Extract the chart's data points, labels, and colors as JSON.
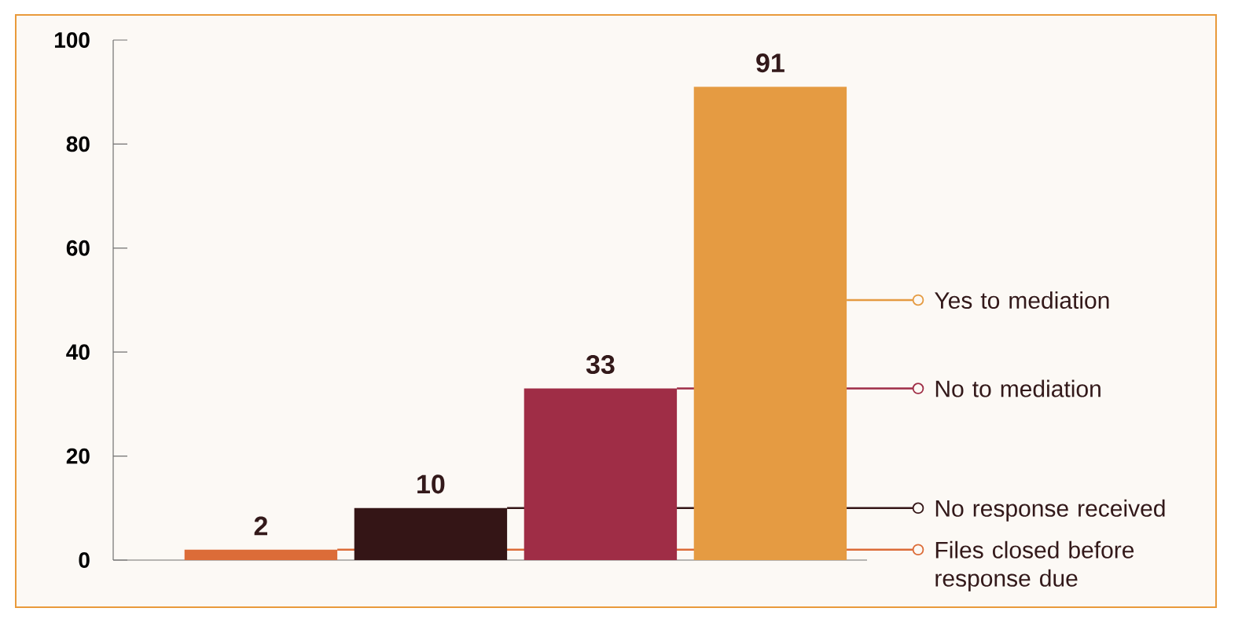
{
  "chart_data": {
    "type": "bar",
    "categories": [
      null,
      null,
      null,
      null
    ],
    "series": [
      {
        "name": "Files closed before response due",
        "color": "#dc6c38",
        "values": [
          2,
          null,
          null,
          null
        ]
      },
      {
        "name": "No response received",
        "color": "#341516",
        "values": [
          null,
          10,
          null,
          null
        ]
      },
      {
        "name": "No to mediation",
        "color": "#9f2d46",
        "values": [
          null,
          null,
          33,
          null
        ]
      },
      {
        "name": "Yes to mediation",
        "color": "#e59b42",
        "values": [
          null,
          null,
          null,
          91
        ]
      }
    ],
    "ylim": [
      0,
      100
    ],
    "yticks": [
      0,
      20,
      40,
      60,
      80,
      100
    ],
    "tick_labels": "y",
    "data_labels": true,
    "legend": "right"
  }
}
